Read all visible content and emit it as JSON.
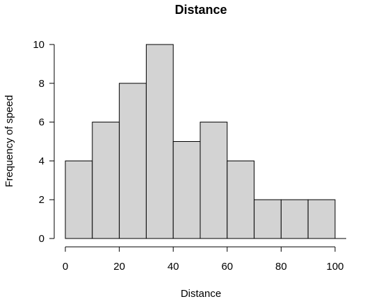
{
  "chart_data": {
    "type": "bar",
    "title": "Distance",
    "xlabel": "Distance",
    "ylabel": "Frequency of speed",
    "bins": [
      {
        "x0": 0,
        "x1": 10,
        "count": 4
      },
      {
        "x0": 10,
        "x1": 20,
        "count": 6
      },
      {
        "x0": 20,
        "x1": 30,
        "count": 8
      },
      {
        "x0": 30,
        "x1": 40,
        "count": 10
      },
      {
        "x0": 40,
        "x1": 50,
        "count": 5
      },
      {
        "x0": 50,
        "x1": 60,
        "count": 6
      },
      {
        "x0": 60,
        "x1": 70,
        "count": 4
      },
      {
        "x0": 70,
        "x1": 80,
        "count": 2
      },
      {
        "x0": 80,
        "x1": 90,
        "count": 2
      },
      {
        "x0": 90,
        "x1": 100,
        "count": 2
      }
    ],
    "xlim": [
      0,
      100
    ],
    "ylim": [
      0,
      10
    ],
    "xticks": [
      "0",
      "20",
      "40",
      "60",
      "80",
      "100"
    ],
    "yticks": [
      "0",
      "2",
      "4",
      "6",
      "8",
      "10"
    ],
    "bar_color": "#d3d3d3",
    "grid": false
  }
}
